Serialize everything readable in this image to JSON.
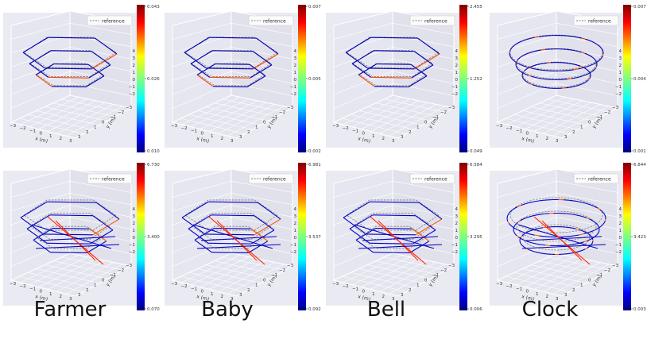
{
  "legend_label": "reference",
  "axis_labels": {
    "x": "x (m)",
    "y": "y (m)"
  },
  "tick_labels": {
    "x": [
      "−3",
      "−2",
      "−1",
      "0",
      "1",
      "2",
      "3"
    ],
    "y": [
      "3",
      "2",
      "1",
      "0",
      "−1",
      "−2",
      "−3"
    ],
    "z": [
      "4",
      "3",
      "2",
      "1",
      "0",
      "−1",
      "−2"
    ]
  },
  "column_labels": [
    "Farmer",
    "Baby",
    "Bell",
    "Clock"
  ],
  "colormap": "jet",
  "colors": {
    "reference": "#808080",
    "line": "#1a237e",
    "pane": "#eaeaf2"
  },
  "chart_data": [
    {
      "type": "line",
      "subtype": "3d-trajectory",
      "row": 0,
      "column": "Farmer",
      "shape": "hexagon",
      "legend": [
        "reference"
      ],
      "colorbar": {
        "max": "0.043",
        "mid": "0.026",
        "min": "0.010"
      }
    },
    {
      "type": "line",
      "subtype": "3d-trajectory",
      "row": 0,
      "column": "Baby",
      "shape": "hexagon",
      "legend": [
        "reference"
      ],
      "colorbar": {
        "max": "0.007",
        "mid": "0.005",
        "min": "0.002"
      }
    },
    {
      "type": "line",
      "subtype": "3d-trajectory",
      "row": 0,
      "column": "Bell",
      "shape": "hexagon",
      "legend": [
        "reference"
      ],
      "colorbar": {
        "max": "2.455",
        "mid": "1.252",
        "min": "0.049"
      }
    },
    {
      "type": "line",
      "subtype": "3d-trajectory",
      "row": 0,
      "column": "Clock",
      "shape": "circle",
      "legend": [
        "reference"
      ],
      "colorbar": {
        "max": "0.007",
        "mid": "0.004",
        "min": "0.001"
      }
    },
    {
      "type": "line",
      "subtype": "3d-trajectory",
      "row": 1,
      "column": "Farmer",
      "shape": "hexagon",
      "legend": [
        "reference"
      ],
      "colorbar": {
        "max": "6.730",
        "mid": "3.400",
        "min": "0.070"
      }
    },
    {
      "type": "line",
      "subtype": "3d-trajectory",
      "row": 1,
      "column": "Baby",
      "shape": "hexagon",
      "legend": [
        "reference"
      ],
      "colorbar": {
        "max": "6.981",
        "mid": "3.537",
        "min": "0.092"
      }
    },
    {
      "type": "line",
      "subtype": "3d-trajectory",
      "row": 1,
      "column": "Bell",
      "shape": "hexagon",
      "legend": [
        "reference"
      ],
      "colorbar": {
        "max": "6.584",
        "mid": "3.295",
        "min": "0.006"
      }
    },
    {
      "type": "line",
      "subtype": "3d-trajectory",
      "row": 1,
      "column": "Clock",
      "shape": "circle",
      "legend": [
        "reference"
      ],
      "colorbar": {
        "max": "6.844",
        "mid": "3.423",
        "min": "0.003"
      }
    }
  ]
}
